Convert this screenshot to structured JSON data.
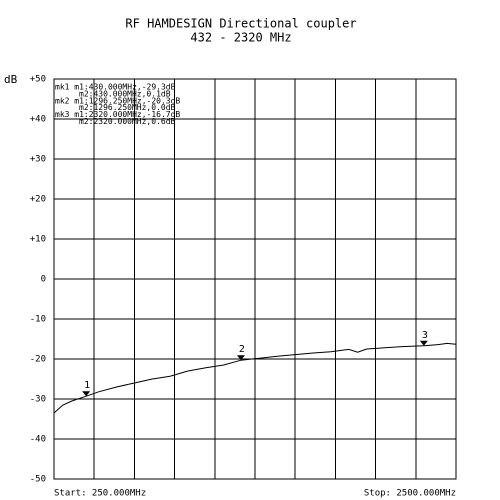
{
  "chart_data": {
    "type": "line",
    "title": "RF HAMDESIGN Directional coupler",
    "subtitle": "432 - 2320 MHz",
    "y_label": "dB",
    "start_label": "Start:  250.000MHz",
    "stop_label": "Stop: 2500.000MHz",
    "annotations": [
      "mk1 m1:430.000MHz,-29.3dB",
      "m2:430.000MHz,0.1dB",
      "mk2 m1:1296.250MHz,-20.3dB",
      "m2:1296.250MHz,0.0dB",
      "mk3 m1:2320.000MHz,-16.7dB",
      "m2:2320.000MHz,0.6dB"
    ],
    "x": [
      250,
      300,
      350,
      430,
      500,
      600,
      700,
      800,
      900,
      1000,
      1100,
      1200,
      1296.25,
      1400,
      1500,
      1600,
      1700,
      1800,
      1900,
      1950,
      2000,
      2100,
      2200,
      2320,
      2400,
      2450,
      2500
    ],
    "values": [
      -33.5,
      -31.5,
      -30.5,
      -29.3,
      -28.2,
      -27,
      -26,
      -25,
      -24.3,
      -23,
      -22.2,
      -21.5,
      -20.3,
      -19.8,
      -19.3,
      -18.9,
      -18.5,
      -18.2,
      -17.6,
      -18.3,
      -17.5,
      -17.2,
      -16.9,
      -16.7,
      -16.4,
      -16.1,
      -16.3
    ],
    "color": "#000000",
    "markers": [
      {
        "label": "1",
        "x": 430,
        "y": -29.3
      },
      {
        "label": "2",
        "x": 1296.25,
        "y": -20.3
      },
      {
        "label": "3",
        "x": 2320,
        "y": -16.7
      }
    ],
    "xlim": [
      250,
      2500
    ],
    "xticks": [
      250,
      475,
      700,
      925,
      1150,
      1375,
      1600,
      1825,
      2050,
      2275,
      2500
    ],
    "ylim": [
      -50,
      50
    ],
    "yticks": [
      {
        "value": 50,
        "label": "+50"
      },
      {
        "value": 40,
        "label": "+40"
      },
      {
        "value": 30,
        "label": "+30"
      },
      {
        "value": 20,
        "label": "+20"
      },
      {
        "value": 10,
        "label": "+10"
      },
      0,
      -10,
      -20,
      -30,
      -40,
      -50
    ],
    "grid": true
  }
}
